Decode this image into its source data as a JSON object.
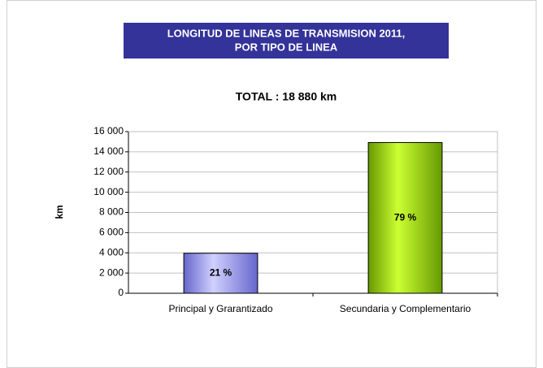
{
  "chart_data": {
    "type": "bar",
    "title": [
      "LONGITUD DE LINEAS DE TRANSMISION 2011,",
      "POR TIPO DE LINEA"
    ],
    "subtitle": "TOTAL : 18 880 km",
    "y_label": "km",
    "categories": [
      "Principal y Grarantizado",
      "Secundaria y Complementario"
    ],
    "values": [
      3960,
      14920
    ],
    "percent_labels": [
      "21 %",
      "79 %"
    ],
    "colors": [
      [
        "#6666cc",
        "#d0d0ff"
      ],
      [
        "#669900",
        "#ccff33"
      ]
    ],
    "ylim": [
      0,
      16000
    ],
    "yticks": [
      0,
      {
        "value": 2000,
        "label": "2 000"
      },
      {
        "value": 4000,
        "label": "4 000"
      },
      {
        "value": 6000,
        "label": "6 000"
      },
      {
        "value": 8000,
        "label": "8 000"
      },
      {
        "value": 10000,
        "label": "10 000"
      },
      {
        "value": 12000,
        "label": "12 000"
      },
      {
        "value": 14000,
        "label": "14 000"
      },
      {
        "value": 16000,
        "label": "16 000"
      }
    ],
    "grid": true
  }
}
